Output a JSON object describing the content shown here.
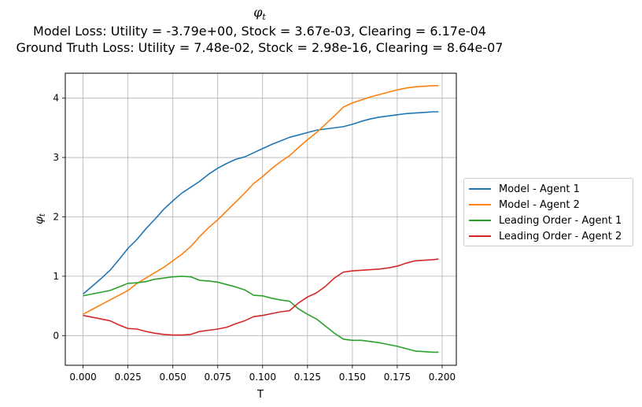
{
  "title": {
    "main": "φt",
    "line2": "Model Loss: Utility = -3.79e+00, Stock = 3.67e-03, Clearing = 6.17e-04",
    "line3": "Ground Truth Loss: Utility = 7.48e-02, Stock = 2.98e-16, Clearing = 8.64e-07"
  },
  "chart_data": {
    "type": "line",
    "xlabel": "T",
    "ylabel": "φt",
    "xlim": [
      -0.0099,
      0.2079
    ],
    "ylim": [
      -0.5,
      4.42
    ],
    "xticks": [
      0.0,
      0.025,
      0.05,
      0.075,
      0.1,
      0.125,
      0.15,
      0.175,
      0.2
    ],
    "xtick_labels": [
      "0.000",
      "0.025",
      "0.050",
      "0.075",
      "0.100",
      "0.125",
      "0.150",
      "0.175",
      "0.200"
    ],
    "yticks": [
      0,
      1,
      2,
      3,
      4
    ],
    "ytick_labels": [
      "0",
      "1",
      "2",
      "3",
      "4"
    ],
    "grid": true,
    "legend_position": "right",
    "series": [
      {
        "name": "Model - Agent 1",
        "color": "#1f77b4",
        "x": [
          0.0,
          0.005,
          0.01,
          0.015,
          0.02,
          0.025,
          0.03,
          0.035,
          0.04,
          0.045,
          0.05,
          0.055,
          0.06,
          0.065,
          0.07,
          0.075,
          0.08,
          0.085,
          0.09,
          0.095,
          0.1,
          0.105,
          0.11,
          0.115,
          0.12,
          0.125,
          0.13,
          0.135,
          0.14,
          0.145,
          0.15,
          0.155,
          0.16,
          0.165,
          0.17,
          0.175,
          0.18,
          0.185,
          0.19,
          0.195,
          0.198
        ],
        "y": [
          0.7,
          0.83,
          0.96,
          1.1,
          1.28,
          1.47,
          1.62,
          1.8,
          1.96,
          2.13,
          2.27,
          2.4,
          2.5,
          2.6,
          2.72,
          2.82,
          2.9,
          2.97,
          3.01,
          3.08,
          3.15,
          3.22,
          3.28,
          3.34,
          3.38,
          3.42,
          3.46,
          3.48,
          3.5,
          3.52,
          3.56,
          3.61,
          3.65,
          3.68,
          3.7,
          3.72,
          3.74,
          3.75,
          3.76,
          3.77,
          3.77
        ]
      },
      {
        "name": "Model - Agent 2",
        "color": "#ff7f0e",
        "x": [
          0.0,
          0.005,
          0.01,
          0.015,
          0.02,
          0.025,
          0.03,
          0.035,
          0.04,
          0.045,
          0.05,
          0.055,
          0.06,
          0.065,
          0.07,
          0.075,
          0.08,
          0.085,
          0.09,
          0.095,
          0.1,
          0.105,
          0.11,
          0.115,
          0.12,
          0.125,
          0.13,
          0.135,
          0.14,
          0.145,
          0.15,
          0.155,
          0.16,
          0.165,
          0.17,
          0.175,
          0.18,
          0.185,
          0.19,
          0.195,
          0.198
        ],
        "y": [
          0.36,
          0.44,
          0.52,
          0.6,
          0.68,
          0.76,
          0.88,
          0.97,
          1.06,
          1.15,
          1.26,
          1.37,
          1.5,
          1.67,
          1.82,
          1.95,
          2.1,
          2.25,
          2.4,
          2.56,
          2.68,
          2.81,
          2.93,
          3.03,
          3.17,
          3.3,
          3.42,
          3.56,
          3.7,
          3.85,
          3.92,
          3.97,
          4.02,
          4.06,
          4.1,
          4.14,
          4.17,
          4.19,
          4.2,
          4.21,
          4.21
        ]
      },
      {
        "name": "Leading Order - Agent 1",
        "color": "#2ca02c",
        "x": [
          0.0,
          0.005,
          0.01,
          0.015,
          0.02,
          0.025,
          0.03,
          0.035,
          0.04,
          0.045,
          0.05,
          0.055,
          0.06,
          0.065,
          0.07,
          0.075,
          0.08,
          0.085,
          0.09,
          0.095,
          0.1,
          0.105,
          0.11,
          0.115,
          0.12,
          0.125,
          0.13,
          0.135,
          0.14,
          0.145,
          0.15,
          0.155,
          0.16,
          0.165,
          0.17,
          0.175,
          0.18,
          0.185,
          0.19,
          0.195,
          0.198
        ],
        "y": [
          0.67,
          0.7,
          0.73,
          0.76,
          0.82,
          0.88,
          0.89,
          0.91,
          0.95,
          0.97,
          0.99,
          1.0,
          0.99,
          0.93,
          0.92,
          0.9,
          0.86,
          0.82,
          0.77,
          0.68,
          0.67,
          0.63,
          0.6,
          0.58,
          0.45,
          0.36,
          0.28,
          0.16,
          0.04,
          -0.06,
          -0.08,
          -0.08,
          -0.1,
          -0.12,
          -0.15,
          -0.18,
          -0.22,
          -0.26,
          -0.27,
          -0.28,
          -0.28
        ]
      },
      {
        "name": "Leading Order - Agent 2",
        "color": "#d62728",
        "x": [
          0.0,
          0.005,
          0.01,
          0.015,
          0.02,
          0.025,
          0.03,
          0.035,
          0.04,
          0.045,
          0.05,
          0.055,
          0.06,
          0.065,
          0.07,
          0.075,
          0.08,
          0.085,
          0.09,
          0.095,
          0.1,
          0.105,
          0.11,
          0.115,
          0.12,
          0.125,
          0.13,
          0.135,
          0.14,
          0.145,
          0.15,
          0.155,
          0.16,
          0.165,
          0.17,
          0.175,
          0.18,
          0.185,
          0.19,
          0.195,
          0.198
        ],
        "y": [
          0.34,
          0.31,
          0.28,
          0.25,
          0.18,
          0.12,
          0.11,
          0.07,
          0.04,
          0.02,
          0.01,
          0.01,
          0.02,
          0.07,
          0.09,
          0.11,
          0.14,
          0.2,
          0.25,
          0.32,
          0.34,
          0.37,
          0.4,
          0.42,
          0.55,
          0.65,
          0.72,
          0.83,
          0.97,
          1.07,
          1.09,
          1.1,
          1.11,
          1.12,
          1.14,
          1.17,
          1.22,
          1.26,
          1.27,
          1.28,
          1.29
        ]
      }
    ]
  }
}
